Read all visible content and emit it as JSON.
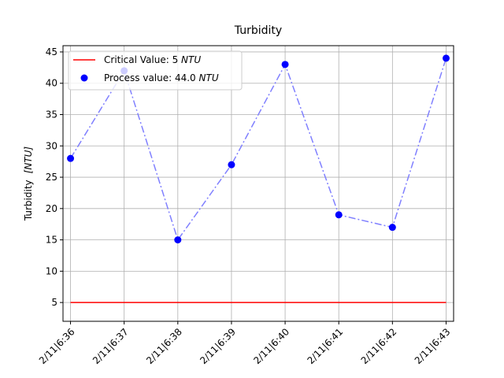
{
  "chart_data": {
    "type": "line",
    "title": "Turbidity",
    "xlabel": "",
    "ylabel": "Turbidity",
    "ylabel_unit": "[NTU]",
    "categories": [
      "2/11|6:36",
      "2/11|6:37",
      "2/11|6:38",
      "2/11|6:39",
      "2/11|6:40",
      "2/11|6:41",
      "2/11|6:42",
      "2/11|6:43"
    ],
    "y_ticks": [
      5,
      10,
      15,
      20,
      25,
      30,
      35,
      40,
      45
    ],
    "ylim": [
      2.0,
      46.0
    ],
    "grid": true,
    "legend_position": "top-left",
    "series": [
      {
        "name": "Critical Value: 5 NTU",
        "legend_prefix": "Critical Value: 5 ",
        "legend_unit": "NTU",
        "style": "solid-line",
        "color": "#ff0000",
        "values": [
          5,
          5,
          5,
          5,
          5,
          5,
          5,
          5
        ]
      },
      {
        "name": "Process value: 44.0 NTU",
        "legend_prefix": "Process value: 44.0 ",
        "legend_unit": "NTU",
        "style": "dashdot-line-with-markers",
        "line_color": "#8080ff",
        "marker_color": "#0000ff",
        "values": [
          28,
          42,
          15,
          27,
          43,
          19,
          17,
          44
        ]
      }
    ]
  }
}
